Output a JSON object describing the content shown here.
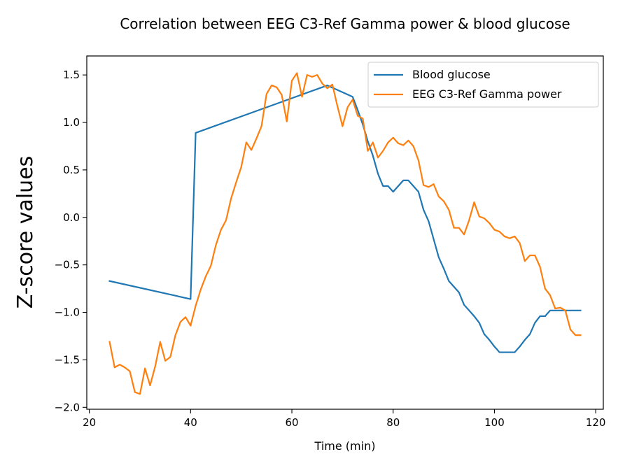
{
  "chart_data": {
    "type": "line",
    "title": "Correlation between EEG C3-Ref Gamma power & blood glucose",
    "xlabel": "Time (min)",
    "ylabel": "Z-score values",
    "xlim": [
      19.5,
      121.5
    ],
    "ylim": [
      -2.02,
      1.7
    ],
    "xticks": [
      20,
      40,
      60,
      80,
      100,
      120
    ],
    "yticks": [
      -2.0,
      -1.5,
      -1.0,
      -0.5,
      0.0,
      0.5,
      1.0,
      1.5
    ],
    "xtick_labels": [
      "20",
      "40",
      "60",
      "80",
      "100",
      "120"
    ],
    "ytick_labels": [
      "−2.0",
      "−1.5",
      "−1.0",
      "−0.5",
      "0.0",
      "0.5",
      "1.0",
      "1.5"
    ],
    "grid": false,
    "legend_position": "upper right",
    "series": [
      {
        "name": "Blood glucose",
        "color": "#1f77b4",
        "x": [
          24,
          40,
          41,
          67,
          72,
          73,
          74,
          75,
          76,
          77,
          78,
          79,
          80,
          81,
          82,
          83,
          84,
          85,
          86,
          87,
          88,
          89,
          90,
          91,
          92,
          93,
          94,
          95,
          96,
          97,
          98,
          99,
          100,
          101,
          102,
          103,
          104,
          105,
          106,
          107,
          108,
          109,
          110,
          111,
          112,
          113,
          114,
          115,
          116,
          117
        ],
        "y": [
          -0.67,
          -0.86,
          0.89,
          1.39,
          1.27,
          1.13,
          0.98,
          0.8,
          0.65,
          0.46,
          0.33,
          0.33,
          0.27,
          0.33,
          0.39,
          0.39,
          0.33,
          0.27,
          0.08,
          -0.04,
          -0.23,
          -0.42,
          -0.54,
          -0.67,
          -0.73,
          -0.79,
          -0.92,
          -0.98,
          -1.04,
          -1.11,
          -1.23,
          -1.29,
          -1.36,
          -1.42,
          -1.42,
          -1.42,
          -1.42,
          -1.36,
          -1.29,
          -1.23,
          -1.11,
          -1.04,
          -1.04,
          -0.98,
          -0.98,
          -0.98,
          -0.98,
          -0.98,
          -0.98,
          -0.98
        ]
      },
      {
        "name": "EEG C3-Ref Gamma power",
        "color": "#ff7f0e",
        "x": [
          24,
          25,
          26,
          27,
          28,
          29,
          30,
          31,
          32,
          33,
          34,
          35,
          36,
          37,
          38,
          39,
          40,
          41,
          42,
          43,
          44,
          45,
          46,
          47,
          48,
          49,
          50,
          51,
          52,
          53,
          54,
          55,
          56,
          57,
          58,
          59,
          60,
          61,
          62,
          63,
          64,
          65,
          66,
          67,
          68,
          69,
          70,
          71,
          72,
          73,
          74,
          75,
          76,
          77,
          78,
          79,
          80,
          81,
          82,
          83,
          84,
          85,
          86,
          87,
          88,
          89,
          90,
          91,
          92,
          93,
          94,
          95,
          96,
          97,
          98,
          99,
          100,
          101,
          102,
          103,
          104,
          105,
          106,
          107,
          108,
          109,
          110,
          111,
          112,
          113,
          114,
          115,
          116,
          117
        ],
        "y": [
          -1.31,
          -1.58,
          -1.55,
          -1.58,
          -1.62,
          -1.84,
          -1.86,
          -1.59,
          -1.77,
          -1.57,
          -1.31,
          -1.51,
          -1.47,
          -1.24,
          -1.1,
          -1.05,
          -1.14,
          -0.93,
          -0.76,
          -0.62,
          -0.51,
          -0.29,
          -0.13,
          -0.03,
          0.2,
          0.37,
          0.53,
          0.79,
          0.71,
          0.83,
          0.96,
          1.3,
          1.39,
          1.37,
          1.29,
          1.01,
          1.44,
          1.52,
          1.27,
          1.5,
          1.48,
          1.5,
          1.41,
          1.36,
          1.4,
          1.17,
          0.96,
          1.16,
          1.24,
          1.07,
          1.04,
          0.7,
          0.79,
          0.63,
          0.7,
          0.79,
          0.84,
          0.78,
          0.76,
          0.81,
          0.75,
          0.6,
          0.34,
          0.32,
          0.35,
          0.22,
          0.17,
          0.08,
          -0.11,
          -0.11,
          -0.18,
          -0.03,
          0.16,
          0.01,
          -0.01,
          -0.06,
          -0.13,
          -0.15,
          -0.2,
          -0.22,
          -0.2,
          -0.27,
          -0.46,
          -0.4,
          -0.4,
          -0.52,
          -0.75,
          -0.82,
          -0.96,
          -0.95,
          -0.98,
          -1.18,
          -1.24,
          -1.24
        ]
      }
    ]
  }
}
